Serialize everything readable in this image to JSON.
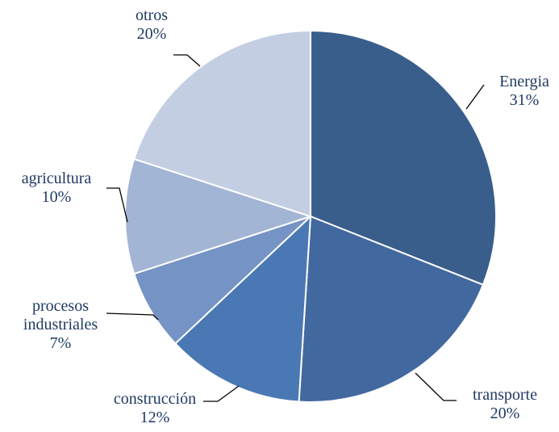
{
  "chart_data": {
    "type": "pie",
    "categories": [
      "Energia",
      "transporte",
      "construcción",
      "procesos industriales",
      "agricultura",
      "otros"
    ],
    "values": [
      31,
      20,
      12,
      7,
      10,
      20
    ],
    "value_labels": [
      "31%",
      "20%",
      "12%",
      "7%",
      "10%",
      "20%"
    ],
    "colors": [
      "#3a5e8c",
      "#42699f",
      "#4a78b4",
      "#7593c4",
      "#a3b5d5",
      "#c4cee3"
    ]
  }
}
